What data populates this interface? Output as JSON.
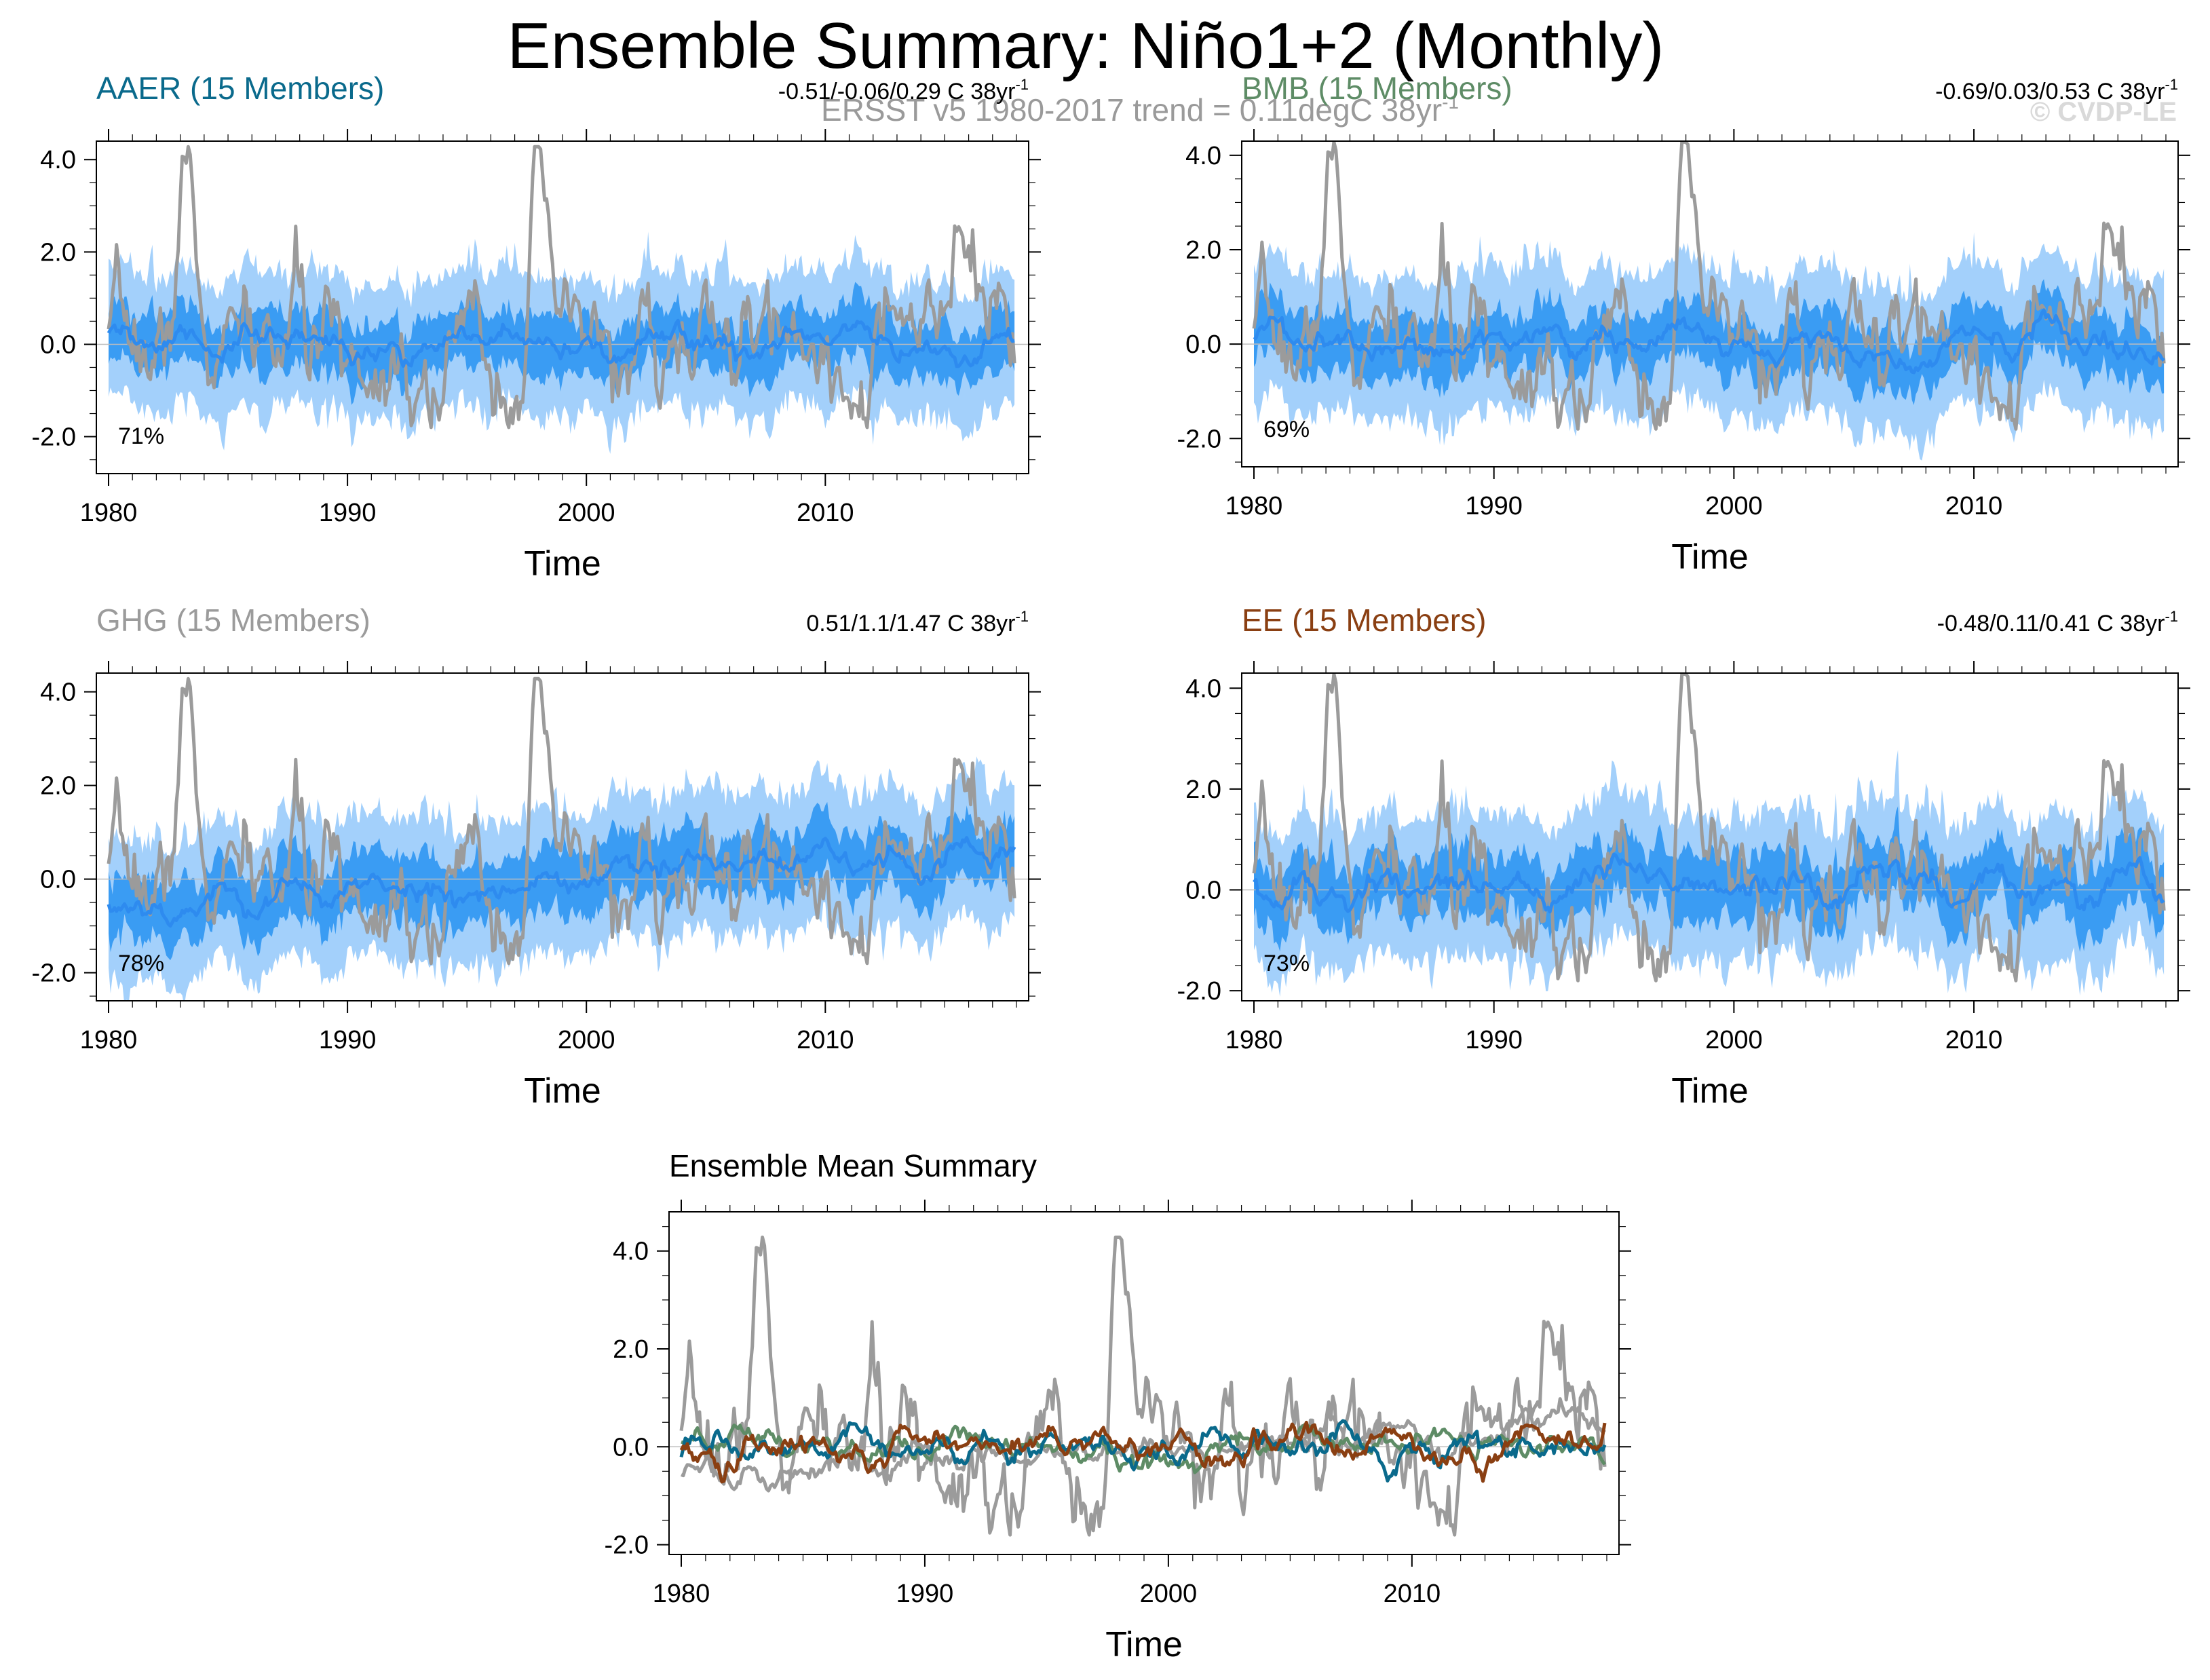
{
  "figure": {
    "title": "Ensemble Summary: Niño1+2 (Monthly)",
    "subtitle": "ERSST v5 1980-2017 trend = 0.11degC 38yr",
    "subtitle_sup": "-1",
    "watermark": "© CVDP-LE"
  },
  "colors": {
    "outer_band": "#a3d0fb",
    "inner_band": "#3a9cf3",
    "ensemble_mean": "#2e8bef",
    "observations": "#9b9b9b",
    "AAER": "#0a6a8c",
    "BMB": "#5e8c66",
    "GHG": "#9b9b9b",
    "EE": "#8a3f12"
  },
  "chart_data": [
    {
      "type": "area",
      "name": "AAER",
      "title": "AAER (15 Members)",
      "trend_text": "-0.51/-0.06/0.29 C 38yr",
      "trend_sup": "-1",
      "percent_label": "71%",
      "xlabel": "Time",
      "xlim": [
        1980,
        2018
      ],
      "ylim": [
        -2.8,
        4.4
      ],
      "xticks": [
        "1980",
        "1990",
        "2000",
        "2010"
      ],
      "yticks": [
        "-2.0",
        "0.0",
        "2.0",
        "4.0"
      ],
      "ens_mean_offset": 0.0,
      "ens_mean_trend": -0.06,
      "spread_outer": 1.25,
      "spread_inner": 0.6,
      "series": [
        {
          "name": "ERSST v5 observations",
          "color_key": "observations"
        },
        {
          "name": "AAER ensemble mean",
          "color_key": "ensemble_mean"
        }
      ]
    },
    {
      "type": "area",
      "name": "BMB",
      "title": "BMB (15 Members)",
      "trend_text": "-0.69/0.03/0.53 C 38yr",
      "trend_sup": "-1",
      "percent_label": "69%",
      "xlabel": "Time",
      "xlim": [
        1980,
        2018
      ],
      "ylim": [
        -2.6,
        4.3
      ],
      "xticks": [
        "1980",
        "1990",
        "2000",
        "2010"
      ],
      "yticks": [
        "-2.0",
        "0.0",
        "2.0",
        "4.0"
      ],
      "ens_mean_offset": 0.0,
      "ens_mean_trend": 0.03,
      "spread_outer": 1.3,
      "spread_inner": 0.6,
      "series": [
        {
          "name": "ERSST v5 observations",
          "color_key": "observations"
        },
        {
          "name": "BMB ensemble mean",
          "color_key": "ensemble_mean"
        }
      ]
    },
    {
      "type": "area",
      "name": "GHG",
      "title": "GHG (15 Members)",
      "trend_text": "0.51/1.1/1.47 C 38yr",
      "trend_sup": "-1",
      "percent_label": "78%",
      "xlabel": "Time",
      "xlim": [
        1980,
        2018
      ],
      "ylim": [
        -2.6,
        4.4
      ],
      "xticks": [
        "1980",
        "1990",
        "2000",
        "2010"
      ],
      "yticks": [
        "-2.0",
        "0.0",
        "2.0",
        "4.0"
      ],
      "ens_mean_offset": -0.55,
      "ens_mean_trend": 1.1,
      "spread_outer": 1.3,
      "spread_inner": 0.65,
      "series": [
        {
          "name": "ERSST v5 observations",
          "color_key": "observations"
        },
        {
          "name": "GHG ensemble mean",
          "color_key": "ensemble_mean"
        }
      ]
    },
    {
      "type": "area",
      "name": "EE",
      "title": "EE (15 Members)",
      "trend_text": "-0.48/0.11/0.41 C 38yr",
      "trend_sup": "-1",
      "percent_label": "73%",
      "xlabel": "Time",
      "xlim": [
        1980,
        2018
      ],
      "ylim": [
        -2.2,
        4.3
      ],
      "xticks": [
        "1980",
        "1990",
        "2000",
        "2010"
      ],
      "yticks": [
        "-2.0",
        "0.0",
        "2.0",
        "4.0"
      ],
      "ens_mean_offset": 0.0,
      "ens_mean_trend": 0.11,
      "spread_outer": 1.2,
      "spread_inner": 0.6,
      "series": [
        {
          "name": "ERSST v5 observations",
          "color_key": "observations"
        },
        {
          "name": "EE ensemble mean",
          "color_key": "ensemble_mean"
        }
      ]
    },
    {
      "type": "line",
      "name": "MEAN",
      "title": "Ensemble Mean Summary",
      "xlabel": "Time",
      "xlim": [
        1980,
        2018
      ],
      "ylim": [
        -2.2,
        4.8
      ],
      "xticks": [
        "1980",
        "1990",
        "2000",
        "2010"
      ],
      "yticks": [
        "-2.0",
        "0.0",
        "2.0",
        "4.0"
      ],
      "series": [
        {
          "name": "ERSST v5 observations",
          "color_key": "observations",
          "offset": 0.0,
          "trend": 0.0
        },
        {
          "name": "GHG ensemble mean",
          "color_key": "GHG",
          "offset": -0.55,
          "trend": 1.1
        },
        {
          "name": "BMB ensemble mean",
          "color_key": "BMB",
          "offset": 0.0,
          "trend": 0.03
        },
        {
          "name": "AAER ensemble mean",
          "color_key": "AAER",
          "offset": 0.0,
          "trend": -0.06
        },
        {
          "name": "EE ensemble mean",
          "color_key": "EE",
          "offset": 0.0,
          "trend": 0.11
        }
      ]
    }
  ]
}
